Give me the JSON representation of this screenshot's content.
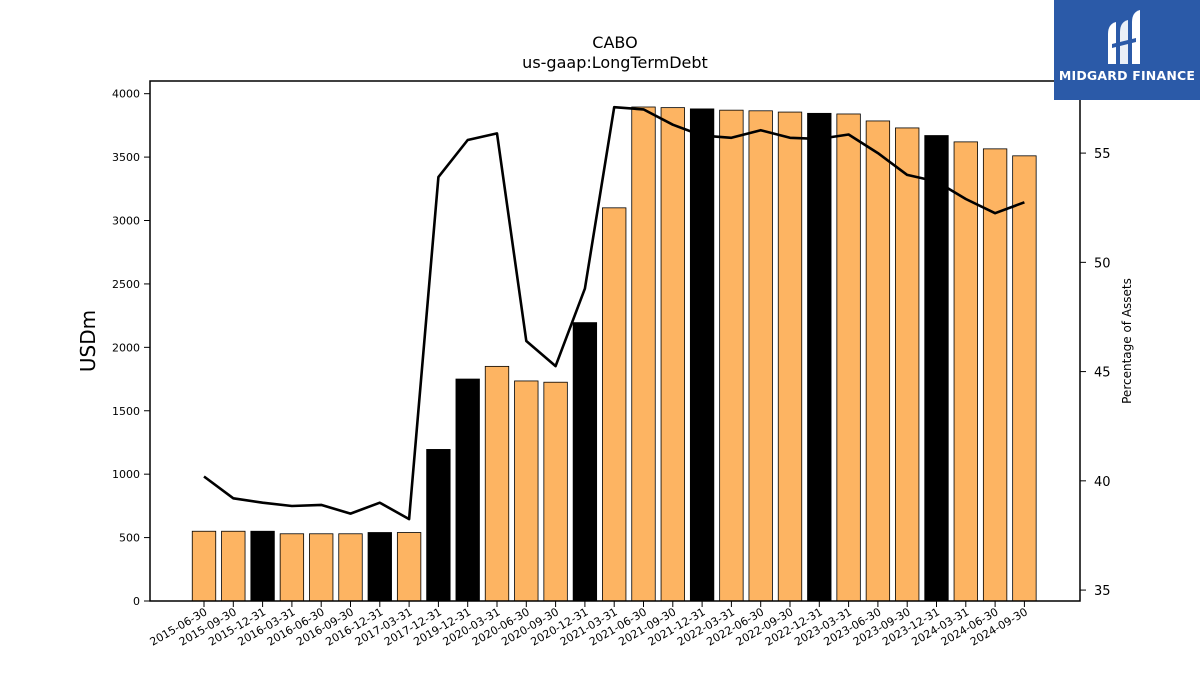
{
  "chart_data": {
    "type": "bar",
    "title": "CABO",
    "subtitle": "us-gaap:LongTermDebt",
    "ylabel": "USDm",
    "y2label": "Percentage of Assets",
    "ylim": [
      0,
      4100
    ],
    "y2lim": [
      34.5,
      58.3
    ],
    "yticks": [
      0,
      500,
      1000,
      1500,
      2000,
      2500,
      3000,
      3500,
      4000
    ],
    "y2ticks": [
      35,
      40,
      45,
      50,
      55
    ],
    "categories": [
      "2015-06-30",
      "2015-09-30",
      "2015-12-31",
      "2016-03-31",
      "2016-06-30",
      "2016-09-30",
      "2016-12-31",
      "2017-03-31",
      "2017-12-31",
      "2019-12-31",
      "2020-03-31",
      "2020-06-30",
      "2020-09-30",
      "2020-12-31",
      "2021-03-31",
      "2021-06-30",
      "2021-09-30",
      "2021-12-31",
      "2022-03-31",
      "2022-06-30",
      "2022-09-30",
      "2022-12-31",
      "2023-03-31",
      "2023-06-30",
      "2023-09-30",
      "2023-12-31",
      "2024-03-31",
      "2024-06-30",
      "2024-09-30"
    ],
    "series": [
      {
        "type": "bar",
        "values": [
          550,
          550,
          550,
          530,
          530,
          530,
          540,
          540,
          1195,
          1750,
          1850,
          1735,
          1725,
          2195,
          3100,
          3895,
          3890,
          3880,
          3870,
          3865,
          3855,
          3845,
          3840,
          3785,
          3730,
          3670,
          3620,
          3565,
          3510
        ],
        "highlight": [
          false,
          false,
          true,
          false,
          false,
          false,
          true,
          false,
          true,
          true,
          false,
          false,
          false,
          true,
          false,
          false,
          false,
          true,
          false,
          false,
          false,
          true,
          false,
          false,
          false,
          true,
          false,
          false,
          false
        ]
      },
      {
        "type": "line",
        "axis": "right",
        "values": [
          40.2,
          39.2,
          39.0,
          38.85,
          38.9,
          38.5,
          39.0,
          38.25,
          53.9,
          55.6,
          55.9,
          46.4,
          45.25,
          48.8,
          57.1,
          57.0,
          56.3,
          55.8,
          55.7,
          56.05,
          55.7,
          55.65,
          55.85,
          55.0,
          54.0,
          53.7,
          52.9,
          52.25,
          52.75
        ]
      }
    ],
    "colors": {
      "bar": "#fdb462",
      "bar_highlight": "#000000",
      "line": "#000000"
    },
    "grid": false,
    "legend": "none"
  },
  "brand": {
    "name": "MIDGARD FINANCE"
  }
}
